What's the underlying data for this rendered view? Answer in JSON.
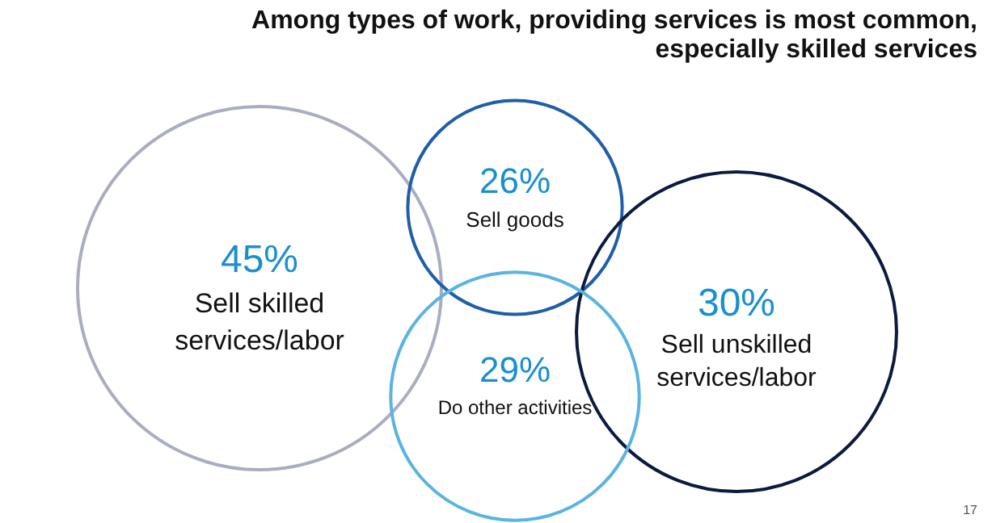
{
  "chart_data": {
    "type": "other",
    "title": "Among types of work, providing services is most common,\nespecially skilled services",
    "categories": [
      "Sell skilled\nservices/labor",
      "Sell goods",
      "Sell unskilled\nservices/labor",
      "Do other activities"
    ],
    "values": [
      45,
      26,
      30,
      29
    ],
    "value_labels": [
      "45%",
      "26%",
      "30%",
      "29%"
    ],
    "colors": [
      "#a9adbf",
      "#1f5fa8",
      "#0d1a3f",
      "#5ab4e0"
    ],
    "annotations": [
      "17"
    ]
  }
}
